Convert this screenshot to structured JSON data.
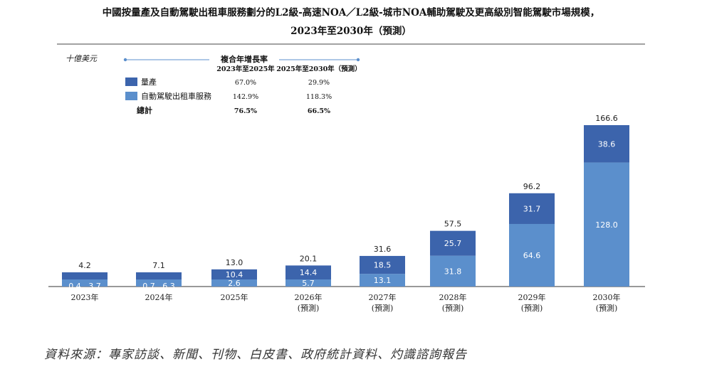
{
  "header": {
    "title_line1": "中國按量產及自動駕駛出租車服務劃分的L2級-高速NOA／L2級-城市NOA輔助駕駛及更高級別智能駕駛市場規模，",
    "title_line2": "2023年至2030年（預測）"
  },
  "cagr_table": {
    "title": "複合年增長率",
    "col1": "2023年至2025年",
    "col2": "2025年至2030年（預測）",
    "rows": [
      {
        "label": "量產",
        "v1": "67.0%",
        "v2": "29.9%",
        "color": "#3c64ac"
      },
      {
        "label": "自動駕駛出租車服務",
        "v1": "142.9%",
        "v2": "118.3%",
        "color": "#5b8fcc"
      },
      {
        "label": "總計",
        "v1": "76.5%",
        "v2": "66.5%",
        "bold": true
      }
    ]
  },
  "chart_data": {
    "type": "bar",
    "stacked": true,
    "ylabel": "十億美元",
    "categories": [
      "2023年",
      "2024年",
      "2025年",
      "2026年",
      "2027年",
      "2028年",
      "2029年",
      "2030年"
    ],
    "category_notes": [
      "",
      "",
      "",
      "(預測)",
      "(預測)",
      "(預測)",
      "(預測)",
      "(預測)"
    ],
    "series": [
      {
        "name": "自動駕駛出租車服務",
        "values": [
          0.4,
          0.7,
          2.6,
          5.7,
          13.1,
          31.8,
          64.6,
          128.0
        ],
        "labels": [
          "0.4",
          "0.7",
          "2.6",
          "5.7",
          "13.1",
          "31.8",
          "64.6",
          "128.0"
        ],
        "color": "#5b8fcc"
      },
      {
        "name": "量產",
        "values": [
          3.7,
          6.3,
          10.4,
          14.4,
          18.5,
          25.7,
          31.7,
          38.6
        ],
        "labels": [
          "3.7",
          "6.3",
          "10.4",
          "14.4",
          "18.5",
          "25.7",
          "31.7",
          "38.6"
        ],
        "color": "#3c64ac"
      }
    ],
    "totals": [
      4.2,
      7.1,
      13.0,
      20.1,
      31.6,
      57.5,
      96.2,
      166.6
    ],
    "total_labels": [
      "4.2",
      "7.1",
      "13.0",
      "20.1",
      "31.6",
      "57.5",
      "96.2",
      "166.6"
    ],
    "ylim": [
      0,
      166.6
    ],
    "grid": false
  },
  "footer": {
    "source": "資料來源：專家訪談、新聞、刊物、白皮書、政府統計資料、灼識諮詢報告"
  }
}
